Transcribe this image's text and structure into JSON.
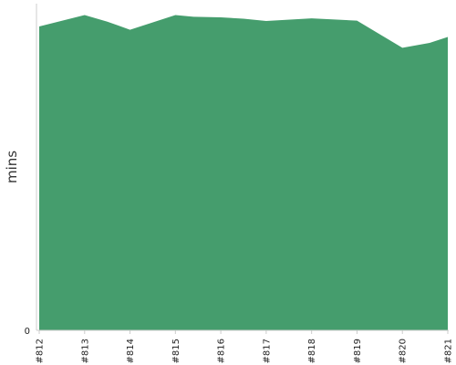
{
  "chart_data": {
    "type": "area",
    "title": "",
    "xlabel": "",
    "ylabel": "mins",
    "categories": [
      "#812",
      "#813",
      "#814",
      "#815",
      "#816",
      "#817",
      "#818",
      "#819",
      "#820",
      "#821"
    ],
    "x": [
      0,
      1,
      1.5,
      2,
      3,
      3.4,
      4,
      4.5,
      5,
      6,
      7,
      8,
      8.6,
      9
    ],
    "values": [
      93,
      96.5,
      94.5,
      92,
      96.5,
      96,
      95.8,
      95.4,
      94.7,
      95.5,
      94.8,
      86.5,
      88,
      89.8
    ],
    "y_ticks": [
      0
    ],
    "ylim": [
      0,
      100
    ],
    "grid": false,
    "colors": {
      "area_fill": "#459d6d",
      "axis_line": "#cccccc"
    }
  }
}
